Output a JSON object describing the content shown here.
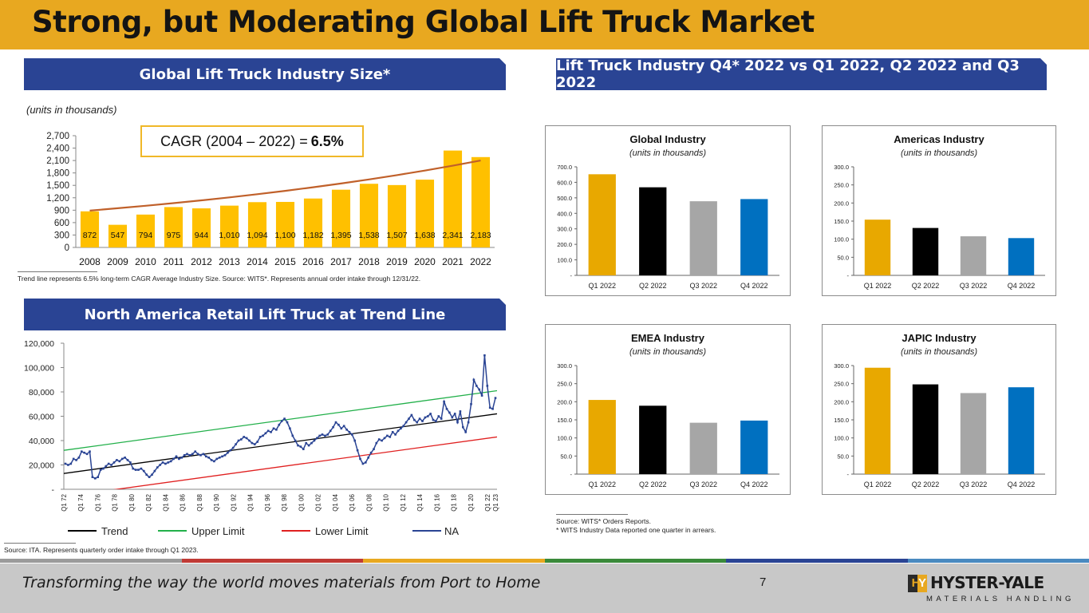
{
  "header": {
    "title": "Strong, but Moderating Global Lift Truck Market"
  },
  "banners": {
    "global_size": "Global Lift Truck Industry Size*",
    "quarterly": "Lift Truck Industry Q4* 2022 vs Q1 2022, Q2 2022 and Q3 2022",
    "na_retail": "North America Retail Lift Truck at Trend Line"
  },
  "units_note": "(units in thousands)",
  "cagr": {
    "label": "CAGR (2004 – 2022) =",
    "value": "6.5%"
  },
  "footnotes": {
    "global_size": "Trend line represents 6.5% long-term CAGR Average Industry Size. Source:  WITS*.  Represents annual order intake through 12/31/22.",
    "na_retail": "Source: ITA. Represents quarterly order intake through Q1 2023.",
    "wits_1": "Source: WITS* Orders Reports.",
    "wits_2": "* WITS Industry Data reported one quarter in arrears."
  },
  "footer": {
    "tagline": "Transforming the way the world moves materials from Port to Home",
    "page_number": "7",
    "logo_mark": "HY",
    "logo_name": "HYSTER-YALE",
    "logo_sub": "MATERIALS HANDLING"
  },
  "colors": {
    "gold": "#e8a820",
    "banner_blue": "#2a4494",
    "bar_gold": "#ffc000",
    "trend_orange": "#c0602a"
  },
  "chart_data": [
    {
      "id": "global_size",
      "type": "bar",
      "categories": [
        "2008",
        "2009",
        "2010",
        "2011",
        "2012",
        "2013",
        "2014",
        "2015",
        "2016",
        "2017",
        "2018",
        "2019",
        "2020",
        "2021",
        "2022"
      ],
      "values": [
        872,
        547,
        794,
        975,
        944,
        1010,
        1094,
        1100,
        1182,
        1395,
        1538,
        1507,
        1638,
        2341,
        2183
      ],
      "data_labels": [
        "872",
        "547",
        "794",
        "975",
        "944",
        "1,010",
        "1,094",
        "1,100",
        "1,182",
        "1,395",
        "1,538",
        "1,507",
        "1,638",
        "2,341",
        "2,183"
      ],
      "trend": {
        "start": 890,
        "end": 2100
      },
      "yticks": [
        "0",
        "300",
        "600",
        "900",
        "1,200",
        "1,500",
        "1,800",
        "2,100",
        "2,400",
        "2,700"
      ],
      "ylim": [
        0,
        2700
      ],
      "grid": false,
      "color": "#ffc000"
    },
    {
      "id": "na_retail",
      "type": "line",
      "x_tick_labels": [
        "Q1 72",
        "Q1 74",
        "Q1 76",
        "Q1 78",
        "Q1 80",
        "Q1 82",
        "Q1 84",
        "Q1 86",
        "Q1 88",
        "Q1 90",
        "Q1 92",
        "Q1 94",
        "Q1 96",
        "Q1 98",
        "Q1 00",
        "Q1 02",
        "Q1 04",
        "Q1 06",
        "Q1 08",
        "Q1 10",
        "Q1 12",
        "Q1 14",
        "Q1 16",
        "Q1 18",
        "Q1 20",
        "Q1 22",
        "Q1 23"
      ],
      "yticks": [
        "-",
        "20,000",
        "40,000",
        "60,000",
        "80,000",
        "100,000",
        "120,000"
      ],
      "ylim": [
        0,
        120000
      ],
      "series": [
        {
          "name": "Trend",
          "color": "#000000",
          "values": [
            13000,
            62000
          ]
        },
        {
          "name": "Upper Limit",
          "color": "#22b04a",
          "values": [
            32000,
            81000
          ]
        },
        {
          "name": "Lower Limit",
          "color": "#e02020",
          "values": [
            -6000,
            43000
          ]
        },
        {
          "name": "NA",
          "color": "#2a4494",
          "values": [
            21000,
            20000,
            21000,
            25000,
            24000,
            26000,
            31000,
            30000,
            29000,
            31000,
            10000,
            9000,
            10000,
            16000,
            17000,
            19000,
            21000,
            20000,
            22000,
            24000,
            23000,
            25000,
            26000,
            24000,
            22000,
            17000,
            16000,
            16000,
            17000,
            15000,
            12000,
            10000,
            12000,
            15000,
            18000,
            20000,
            22000,
            21000,
            22000,
            23000,
            25000,
            27000,
            25000,
            26000,
            28000,
            29000,
            28000,
            29000,
            31000,
            29000,
            28000,
            29000,
            27000,
            26000,
            24000,
            23000,
            25000,
            26000,
            27000,
            28000,
            30000,
            32000,
            34000,
            37000,
            40000,
            41000,
            43000,
            42000,
            40000,
            38000,
            37000,
            39000,
            43000,
            44000,
            46000,
            48000,
            47000,
            50000,
            49000,
            53000,
            56000,
            58000,
            55000,
            50000,
            44000,
            40000,
            36000,
            35000,
            33000,
            38000,
            36000,
            38000,
            40000,
            42000,
            44000,
            45000,
            44000,
            45000,
            48000,
            51000,
            55000,
            53000,
            50000,
            52000,
            49000,
            47000,
            45000,
            40000,
            32000,
            25000,
            21000,
            22000,
            26000,
            30000,
            33000,
            38000,
            41000,
            40000,
            42000,
            44000,
            43000,
            47000,
            45000,
            48000,
            50000,
            52000,
            55000,
            58000,
            61000,
            57000,
            55000,
            58000,
            56000,
            59000,
            60000,
            62000,
            57000,
            56000,
            60000,
            58000,
            72000,
            66000,
            63000,
            59000,
            62000,
            55000,
            64000,
            51000,
            47000,
            55000,
            70000,
            90000,
            85000,
            82000,
            77000,
            110000,
            85000,
            67000,
            66000,
            75000
          ]
        }
      ],
      "legend": [
        "Trend",
        "Upper Limit",
        "Lower Limit",
        "NA"
      ]
    },
    {
      "id": "global_industry",
      "type": "bar",
      "title": "Global Industry",
      "subtitle": "(units in thousands)",
      "categories": [
        "Q1 2022",
        "Q2 2022",
        "Q3 2022",
        "Q4 2022"
      ],
      "values": [
        652,
        568,
        478,
        492
      ],
      "colors": [
        "#e8a800",
        "#000000",
        "#a6a6a6",
        "#0070c0"
      ],
      "yticks": [
        "-",
        "100.0",
        "200.0",
        "300.0",
        "400.0",
        "500.0",
        "600.0",
        "700.0"
      ],
      "ylim": [
        0,
        700
      ]
    },
    {
      "id": "americas_industry",
      "type": "bar",
      "title": "Americas Industry",
      "subtitle": "(units in thousands)",
      "categories": [
        "Q1 2022",
        "Q2 2022",
        "Q3 2022",
        "Q4 2022"
      ],
      "values": [
        154,
        131,
        108,
        103
      ],
      "colors": [
        "#e8a800",
        "#000000",
        "#a6a6a6",
        "#0070c0"
      ],
      "yticks": [
        "-",
        "50.0",
        "100.0",
        "150.0",
        "200.0",
        "250.0",
        "300.0"
      ],
      "ylim": [
        0,
        300
      ]
    },
    {
      "id": "emea_industry",
      "type": "bar",
      "title": "EMEA Industry",
      "subtitle": "(units in thousands)",
      "categories": [
        "Q1 2022",
        "Q2 2022",
        "Q3 2022",
        "Q4 2022"
      ],
      "values": [
        205,
        189,
        142,
        148
      ],
      "colors": [
        "#e8a800",
        "#000000",
        "#a6a6a6",
        "#0070c0"
      ],
      "yticks": [
        "-",
        "50.0",
        "100.0",
        "150.0",
        "200.0",
        "250.0",
        "300.0"
      ],
      "ylim": [
        0,
        300
      ]
    },
    {
      "id": "japic_industry",
      "type": "bar",
      "title": "JAPIC Industry",
      "subtitle": "(units in thousands)",
      "categories": [
        "Q1 2022",
        "Q2 2022",
        "Q3 2022",
        "Q4 2022"
      ],
      "values": [
        294,
        248,
        224,
        240
      ],
      "colors": [
        "#e8a800",
        "#000000",
        "#a6a6a6",
        "#0070c0"
      ],
      "yticks": [
        "-",
        "50.0",
        "100.0",
        "150.0",
        "200.0",
        "250.0",
        "300.0"
      ],
      "ylim": [
        0,
        300
      ]
    }
  ]
}
